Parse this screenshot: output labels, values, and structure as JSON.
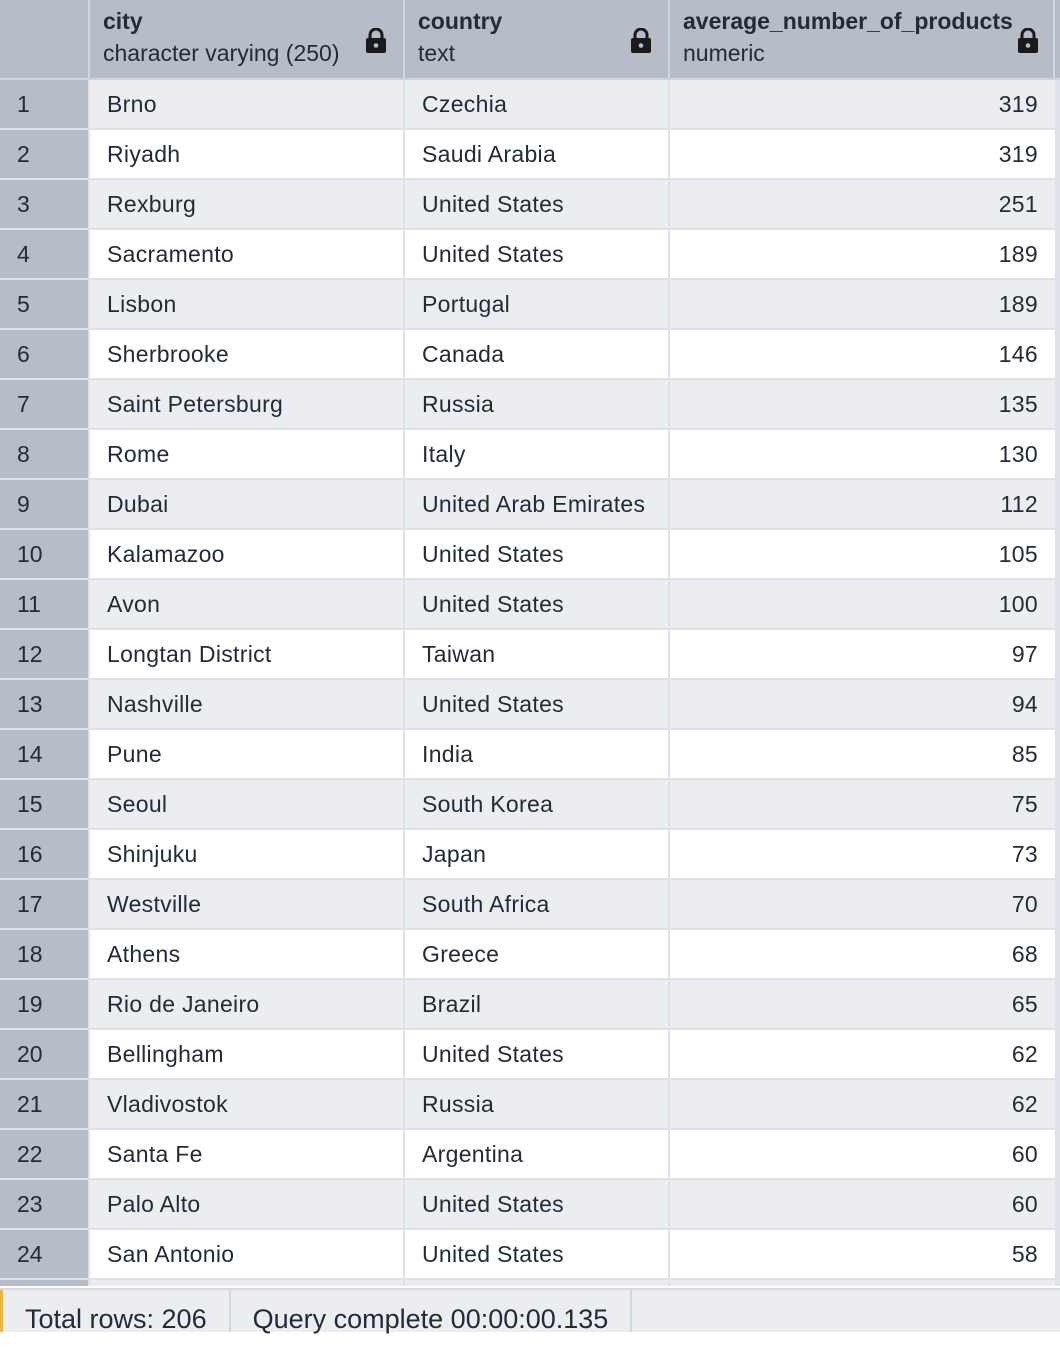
{
  "columns": [
    {
      "name": "city",
      "type": "character varying (250)"
    },
    {
      "name": "country",
      "type": "text"
    },
    {
      "name": "average_number_of_products",
      "type": "numeric"
    }
  ],
  "lock_icon": "lock-icon",
  "rows": [
    {
      "n": "1",
      "city": "Brno",
      "country": "Czechia",
      "value": "319"
    },
    {
      "n": "2",
      "city": "Riyadh",
      "country": "Saudi Arabia",
      "value": "319"
    },
    {
      "n": "3",
      "city": "Rexburg",
      "country": "United States",
      "value": "251"
    },
    {
      "n": "4",
      "city": "Sacramento",
      "country": "United States",
      "value": "189"
    },
    {
      "n": "5",
      "city": "Lisbon",
      "country": "Portugal",
      "value": "189"
    },
    {
      "n": "6",
      "city": "Sherbrooke",
      "country": "Canada",
      "value": "146"
    },
    {
      "n": "7",
      "city": "Saint Petersburg",
      "country": "Russia",
      "value": "135"
    },
    {
      "n": "8",
      "city": "Rome",
      "country": "Italy",
      "value": "130"
    },
    {
      "n": "9",
      "city": "Dubai",
      "country": "United Arab Emirates",
      "value": "112"
    },
    {
      "n": "10",
      "city": "Kalamazoo",
      "country": "United States",
      "value": "105"
    },
    {
      "n": "11",
      "city": "Avon",
      "country": "United States",
      "value": "100"
    },
    {
      "n": "12",
      "city": "Longtan District",
      "country": "Taiwan",
      "value": "97"
    },
    {
      "n": "13",
      "city": "Nashville",
      "country": "United States",
      "value": "94"
    },
    {
      "n": "14",
      "city": "Pune",
      "country": "India",
      "value": "85"
    },
    {
      "n": "15",
      "city": "Seoul",
      "country": "South Korea",
      "value": "75"
    },
    {
      "n": "16",
      "city": "Shinjuku",
      "country": "Japan",
      "value": "73"
    },
    {
      "n": "17",
      "city": "Westville",
      "country": "South Africa",
      "value": "70"
    },
    {
      "n": "18",
      "city": "Athens",
      "country": "Greece",
      "value": "68"
    },
    {
      "n": "19",
      "city": "Rio de Janeiro",
      "country": "Brazil",
      "value": "65"
    },
    {
      "n": "20",
      "city": "Bellingham",
      "country": "United States",
      "value": "62"
    },
    {
      "n": "21",
      "city": "Vladivostok",
      "country": "Russia",
      "value": "62"
    },
    {
      "n": "22",
      "city": "Santa Fe",
      "country": "Argentina",
      "value": "60"
    },
    {
      "n": "23",
      "city": "Palo Alto",
      "country": "United States",
      "value": "60"
    },
    {
      "n": "24",
      "city": "San Antonio",
      "country": "United States",
      "value": "58"
    }
  ],
  "status": {
    "total_rows": "Total rows: 206",
    "query": "Query complete 00:00:00.135"
  },
  "colors": {
    "header_bg": "#b6bdc9",
    "row_odd": "#ebedf1",
    "row_even": "#ffffff",
    "accent": "#e8b842"
  }
}
